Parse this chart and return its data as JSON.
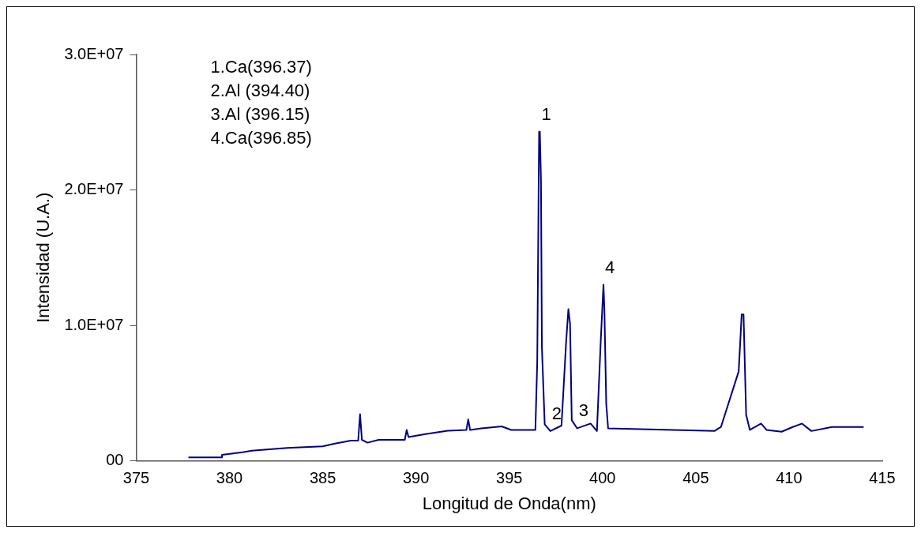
{
  "chart_data": {
    "type": "line",
    "xlabel": "Longitud de Onda(nm)",
    "ylabel": "Intensidad (U.A.)",
    "xlim": [
      375,
      415
    ],
    "xticks": [
      375,
      380,
      385,
      390,
      395,
      400,
      405,
      410,
      415
    ],
    "ylim": [
      0,
      30000000
    ],
    "yticks": [
      {
        "value": 0,
        "label": "00"
      },
      {
        "value": 10000000,
        "label": "1.0E+07"
      },
      {
        "value": 20000000,
        "label": "2.0E+07"
      },
      {
        "value": 30000000,
        "label": "3.0E+07"
      }
    ],
    "grid": false,
    "legend": false,
    "marker": "none",
    "line_style": "solid",
    "series": [
      {
        "color": "#000080",
        "x": [
          377.8,
          379.6,
          379.6,
          380.7,
          381.2,
          383.1,
          385,
          385.6,
          386.5,
          386.9,
          387.0,
          387.1,
          387.4,
          388,
          389.4,
          389.5,
          389.6,
          390.5,
          391.7,
          392.7,
          392.8,
          392.9,
          393.5,
          394.6,
          395.1,
          396.4,
          396.5,
          396.6,
          396.64,
          396.7,
          396.75,
          396.9,
          397.2,
          397.8,
          398.05,
          398.17,
          398.26,
          398.35,
          398.64,
          399.36,
          399.7,
          399.9,
          400.05,
          400.1,
          400.2,
          400.3,
          406,
          406.35,
          407.3,
          407.46,
          407.56,
          407.7,
          407.9,
          408.5,
          408.8,
          409.6,
          410.2,
          410.7,
          411.2,
          412.3,
          414
        ],
        "values": [
          250000,
          250000,
          440000,
          630000,
          750000,
          960000,
          1070000,
          1260000,
          1490000,
          1490000,
          3440000,
          1550000,
          1340000,
          1550000,
          1550000,
          2280000,
          1760000,
          1970000,
          2220000,
          2280000,
          3060000,
          2280000,
          2400000,
          2540000,
          2280000,
          2280000,
          7300000,
          24300000,
          24300000,
          20800000,
          8400000,
          2700000,
          2200000,
          2600000,
          8800000,
          11200000,
          10100000,
          3000000,
          2400000,
          2750000,
          2200000,
          8700000,
          13000000,
          11200000,
          4200000,
          2400000,
          2200000,
          2500000,
          6600000,
          10800000,
          10800000,
          3400000,
          2280000,
          2750000,
          2280000,
          2150000,
          2500000,
          2750000,
          2200000,
          2500000,
          2500000
        ]
      }
    ],
    "annotations": [
      "1.Ca(396.37)",
      "2.Al (394.40)",
      "3.Al (396.15)",
      "4.Ca(396.85)",
      {
        "text": "1",
        "x": 396.64,
        "y": 24300000
      },
      {
        "text": "2",
        "x": 397.2,
        "y": 2200000
      },
      {
        "text": "3",
        "x": 398.64,
        "y": 2400000
      },
      {
        "text": "4",
        "x": 400.05,
        "y": 13000000
      }
    ]
  }
}
